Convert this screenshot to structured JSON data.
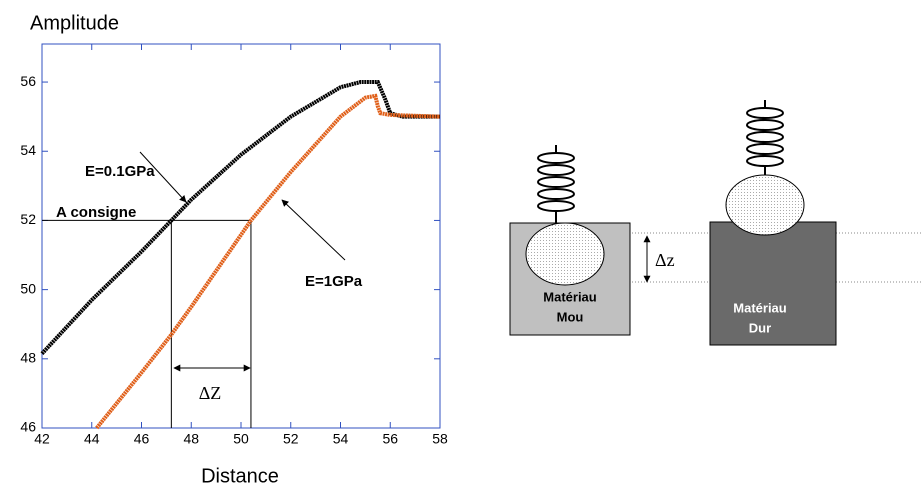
{
  "chart_data": {
    "type": "line",
    "y_label": "Amplitude",
    "x_label": "Distance",
    "xlim": [
      42,
      58
    ],
    "ylim": [
      46,
      57.1
    ],
    "xticks": [
      42,
      44,
      46,
      48,
      50,
      52,
      54,
      56,
      58
    ],
    "yticks": [
      46,
      48,
      50,
      52,
      54,
      56
    ],
    "series": [
      {
        "name": "E=0.1GPa",
        "color": "#000000",
        "x": [
          42,
          44,
          46,
          47.2,
          48,
          50,
          52,
          54,
          54.8,
          55.5,
          55.8,
          56,
          56.5,
          58
        ],
        "values": [
          48.15,
          49.7,
          51.1,
          52.0,
          52.6,
          53.9,
          55.0,
          55.85,
          56.0,
          56.0,
          55.5,
          55.1,
          55.0,
          55.0
        ]
      },
      {
        "name": "E=1GPa",
        "color": "#e0601a",
        "x": [
          44.2,
          46,
          47.2,
          48,
          50.4,
          52,
          54,
          55,
          55.4,
          55.5,
          55.6,
          56,
          58
        ],
        "values": [
          46.0,
          47.6,
          48.7,
          49.5,
          52.0,
          53.4,
          55.0,
          55.55,
          55.6,
          55.3,
          55.1,
          55.05,
          55.0
        ]
      }
    ],
    "reference_lines": {
      "label": "A consigne",
      "y": 52,
      "x": [
        47.2,
        50.4
      ],
      "dx_label": "ΔZ"
    }
  },
  "diagram": {
    "soft": [
      "Matériau",
      "Mou"
    ],
    "hard": [
      "Matériau",
      "Dur"
    ],
    "dz_label": "Δz"
  }
}
